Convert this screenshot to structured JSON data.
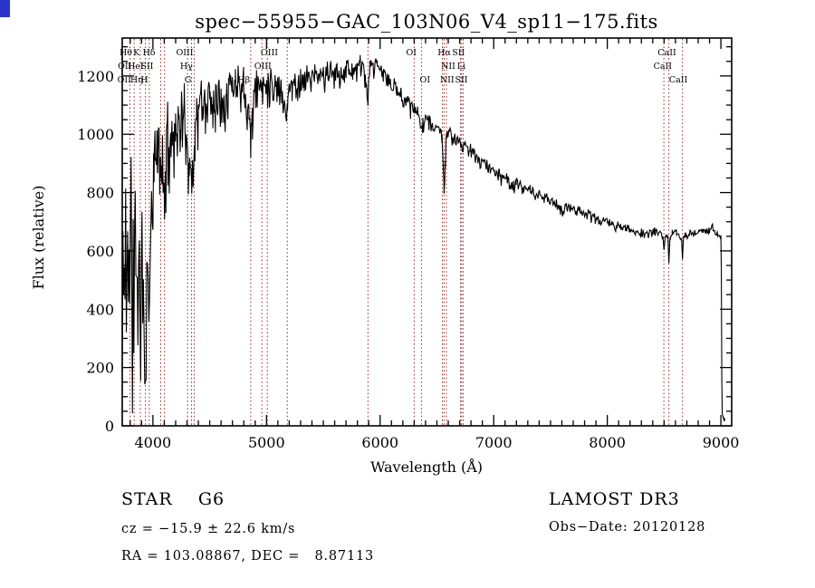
{
  "window": {
    "corner_artifact_color": "#2a35c8"
  },
  "chart_data": {
    "type": "line",
    "title": "spec−55955−GAC_103N06_V4_sp11−175.fits",
    "xlabel": "Wavelength (Å)",
    "ylabel": "Flux (relative)",
    "xlim": [
      3730,
      9095
    ],
    "ylim": [
      0,
      1330
    ],
    "xticks": [
      4000,
      5000,
      6000,
      7000,
      8000,
      9000
    ],
    "yticks": [
      0,
      200,
      400,
      600,
      800,
      1000,
      1200
    ],
    "x_minor_step": 100,
    "y_minor_step": 50,
    "grid": false,
    "legend": "none",
    "spectrum_color": "#000000",
    "line_marker_color": "#993333",
    "spectral_lines": [
      {
        "label": "Hθ",
        "wavelength": 3798,
        "row": 1,
        "label_at": 3762
      },
      {
        "label": "K",
        "wavelength": 3934,
        "row": 1,
        "label_at": 3855
      },
      {
        "label": "Hδ",
        "wavelength": 4102,
        "row": 1,
        "label_at": 3965
      },
      {
        "label": "OIII",
        "wavelength": 4363,
        "row": 1,
        "label_at": 4280
      },
      {
        "label": "OIII",
        "wavelength": 5007,
        "row": 1,
        "label_at": 5025
      },
      {
        "label": "OI",
        "wavelength": 6300,
        "row": 1,
        "label_at": 6275
      },
      {
        "label": "Hα",
        "wavelength": 6563,
        "row": 1,
        "label_at": 6565
      },
      {
        "label": "SII",
        "wavelength": 6717,
        "row": 1,
        "label_at": 6690
      },
      {
        "label": "CaII",
        "wavelength": 8542,
        "row": 1,
        "label_at": 8525
      },
      {
        "label": "OII",
        "wavelength": 3727,
        "row": 2,
        "label_at": 3752
      },
      {
        "label": "HeI",
        "wavelength": 3889,
        "row": 2,
        "label_at": 3848
      },
      {
        "label": "SII",
        "wavelength": 4069,
        "row": 2,
        "label_at": 3948
      },
      {
        "label": "Hγ",
        "wavelength": 4340,
        "row": 2,
        "label_at": 4295
      },
      {
        "label": "OIII",
        "wavelength": 4959,
        "row": 2,
        "label_at": 4968
      },
      {
        "label": "NII",
        "wavelength": 6584,
        "row": 2,
        "label_at": 6600
      },
      {
        "label": "Li",
        "wavelength": 6708,
        "row": 2,
        "label_at": 6715
      },
      {
        "label": "CaII",
        "wavelength": 8498,
        "row": 2,
        "label_at": 8488
      },
      {
        "label": "OII",
        "wavelength": 3729,
        "row": 3,
        "label_at": 3748
      },
      {
        "label": "Hη",
        "wavelength": 3835,
        "row": 3,
        "label_at": 3856
      },
      {
        "label": "H",
        "wavelength": 3968,
        "row": 3,
        "label_at": 3925
      },
      {
        "label": "G",
        "wavelength": 4305,
        "row": 3,
        "label_at": 4308
      },
      {
        "label": "Hβ",
        "wavelength": 4861,
        "row": 3,
        "label_at": 4800
      },
      {
        "label": "OI",
        "wavelength": 6364,
        "row": 3,
        "label_at": 6395
      },
      {
        "label": "NII",
        "wavelength": 6548,
        "row": 3,
        "label_at": 6590
      },
      {
        "label": "SII",
        "wavelength": 6731,
        "row": 3,
        "label_at": 6715
      },
      {
        "label": "CaII",
        "wavelength": 8662,
        "row": 3,
        "label_at": 8625
      },
      {
        "label": "",
        "wavelength": 5183,
        "row": 0
      },
      {
        "label": "",
        "wavelength": 5893,
        "row": 0
      }
    ],
    "spectrum_continuum": [
      [
        3730,
        180
      ],
      [
        3736,
        620
      ],
      [
        3742,
        360
      ],
      [
        3748,
        680
      ],
      [
        3754,
        420
      ],
      [
        3760,
        740
      ],
      [
        3766,
        300
      ],
      [
        3772,
        580
      ],
      [
        3778,
        850
      ],
      [
        3784,
        500
      ],
      [
        3790,
        700
      ],
      [
        3796,
        380
      ],
      [
        3802,
        640
      ],
      [
        3808,
        800
      ],
      [
        3814,
        480
      ],
      [
        3820,
        260
      ],
      [
        3826,
        560
      ],
      [
        3832,
        420
      ],
      [
        3838,
        640
      ],
      [
        3844,
        780
      ],
      [
        3850,
        520
      ],
      [
        3856,
        380
      ],
      [
        3862,
        680
      ],
      [
        3868,
        300
      ],
      [
        3874,
        550
      ],
      [
        3880,
        700
      ],
      [
        3886,
        420
      ],
      [
        3892,
        240
      ],
      [
        3898,
        520
      ],
      [
        3904,
        660
      ],
      [
        3910,
        400
      ],
      [
        3916,
        560
      ],
      [
        3922,
        300
      ],
      [
        3928,
        180
      ],
      [
        3934,
        120
      ],
      [
        3940,
        340
      ],
      [
        3946,
        520
      ],
      [
        3952,
        680
      ],
      [
        3958,
        460
      ],
      [
        3964,
        280
      ],
      [
        3970,
        380
      ],
      [
        3976,
        560
      ],
      [
        3982,
        720
      ],
      [
        3988,
        830
      ],
      [
        3994,
        760
      ],
      [
        4000,
        850
      ],
      [
        4010,
        920
      ],
      [
        4020,
        880
      ],
      [
        4030,
        950
      ],
      [
        4040,
        900
      ],
      [
        4050,
        980
      ],
      [
        4060,
        930
      ],
      [
        4070,
        880
      ],
      [
        4080,
        920
      ],
      [
        4090,
        850
      ],
      [
        4100,
        760
      ],
      [
        4110,
        880
      ],
      [
        4120,
        940
      ],
      [
        4130,
        990
      ],
      [
        4140,
        950
      ],
      [
        4150,
        1010
      ],
      [
        4160,
        970
      ],
      [
        4170,
        1020
      ],
      [
        4180,
        980
      ],
      [
        4190,
        1040
      ],
      [
        4200,
        1000
      ],
      [
        4215,
        1050
      ],
      [
        4230,
        1010
      ],
      [
        4245,
        1060
      ],
      [
        4260,
        1030
      ],
      [
        4275,
        1070
      ],
      [
        4290,
        1020
      ],
      [
        4300,
        960
      ],
      [
        4310,
        900
      ],
      [
        4320,
        940
      ],
      [
        4330,
        880
      ],
      [
        4340,
        820
      ],
      [
        4350,
        900
      ],
      [
        4360,
        960
      ],
      [
        4370,
        1010
      ],
      [
        4385,
        1050
      ],
      [
        4400,
        1080
      ],
      [
        4420,
        1110
      ],
      [
        4440,
        1090
      ],
      [
        4460,
        1120
      ],
      [
        4480,
        1100
      ],
      [
        4500,
        1130
      ],
      [
        4525,
        1110
      ],
      [
        4550,
        1140
      ],
      [
        4575,
        1120
      ],
      [
        4600,
        1150
      ],
      [
        4625,
        1130
      ],
      [
        4650,
        1160
      ],
      [
        4675,
        1180
      ],
      [
        4700,
        1160
      ],
      [
        4725,
        1190
      ],
      [
        4750,
        1170
      ],
      [
        4775,
        1190
      ],
      [
        4800,
        1170
      ],
      [
        4815,
        1150
      ],
      [
        4830,
        1120
      ],
      [
        4845,
        1060
      ],
      [
        4861,
        990
      ],
      [
        4875,
        1080
      ],
      [
        4890,
        1130
      ],
      [
        4910,
        1160
      ],
      [
        4930,
        1180
      ],
      [
        4950,
        1160
      ],
      [
        4970,
        1180
      ],
      [
        4990,
        1190
      ],
      [
        5010,
        1170
      ],
      [
        5030,
        1190
      ],
      [
        5050,
        1170
      ],
      [
        5075,
        1180
      ],
      [
        5100,
        1160
      ],
      [
        5125,
        1170
      ],
      [
        5150,
        1120
      ],
      [
        5170,
        1080
      ],
      [
        5185,
        1110
      ],
      [
        5200,
        1150
      ],
      [
        5225,
        1170
      ],
      [
        5250,
        1180
      ],
      [
        5275,
        1170
      ],
      [
        5300,
        1190
      ],
      [
        5325,
        1180
      ],
      [
        5350,
        1200
      ],
      [
        5375,
        1190
      ],
      [
        5400,
        1210
      ],
      [
        5425,
        1200
      ],
      [
        5450,
        1190
      ],
      [
        5475,
        1210
      ],
      [
        5500,
        1200
      ],
      [
        5525,
        1210
      ],
      [
        5550,
        1220
      ],
      [
        5575,
        1200
      ],
      [
        5600,
        1210
      ],
      [
        5625,
        1220
      ],
      [
        5650,
        1210
      ],
      [
        5675,
        1220
      ],
      [
        5700,
        1230
      ],
      [
        5725,
        1220
      ],
      [
        5750,
        1230
      ],
      [
        5775,
        1220
      ],
      [
        5800,
        1230
      ],
      [
        5825,
        1240
      ],
      [
        5850,
        1230
      ],
      [
        5870,
        1200
      ],
      [
        5885,
        1130
      ],
      [
        5893,
        1100
      ],
      [
        5900,
        1170
      ],
      [
        5910,
        1220
      ],
      [
        5925,
        1240
      ],
      [
        5950,
        1235
      ],
      [
        5975,
        1230
      ],
      [
        6000,
        1225
      ],
      [
        6030,
        1210
      ],
      [
        6060,
        1190
      ],
      [
        6090,
        1180
      ],
      [
        6120,
        1165
      ],
      [
        6150,
        1150
      ],
      [
        6180,
        1140
      ],
      [
        6210,
        1130
      ],
      [
        6240,
        1115
      ],
      [
        6270,
        1100
      ],
      [
        6300,
        1080
      ],
      [
        6330,
        1070
      ],
      [
        6355,
        1040
      ],
      [
        6364,
        1020
      ],
      [
        6375,
        1050
      ],
      [
        6400,
        1055
      ],
      [
        6430,
        1045
      ],
      [
        6460,
        1035
      ],
      [
        6490,
        1025
      ],
      [
        6520,
        1015
      ],
      [
        6545,
        1000
      ],
      [
        6555,
        900
      ],
      [
        6563,
        810
      ],
      [
        6572,
        910
      ],
      [
        6585,
        990
      ],
      [
        6610,
        1000
      ],
      [
        6640,
        990
      ],
      [
        6670,
        985
      ],
      [
        6700,
        975
      ],
      [
        6730,
        960
      ],
      [
        6760,
        955
      ],
      [
        6790,
        945
      ],
      [
        6820,
        935
      ],
      [
        6850,
        925
      ],
      [
        6880,
        915
      ],
      [
        6910,
        905
      ],
      [
        6940,
        895
      ],
      [
        6970,
        885
      ],
      [
        7000,
        875
      ],
      [
        7040,
        865
      ],
      [
        7080,
        855
      ],
      [
        7120,
        845
      ],
      [
        7160,
        830
      ],
      [
        7180,
        815
      ],
      [
        7200,
        835
      ],
      [
        7240,
        825
      ],
      [
        7280,
        815
      ],
      [
        7320,
        805
      ],
      [
        7360,
        800
      ],
      [
        7400,
        790
      ],
      [
        7440,
        785
      ],
      [
        7480,
        775
      ],
      [
        7520,
        770
      ],
      [
        7560,
        760
      ],
      [
        7590,
        740
      ],
      [
        7610,
        730
      ],
      [
        7640,
        755
      ],
      [
        7680,
        750
      ],
      [
        7720,
        745
      ],
      [
        7760,
        740
      ],
      [
        7800,
        730
      ],
      [
        7840,
        725
      ],
      [
        7880,
        715
      ],
      [
        7920,
        710
      ],
      [
        7960,
        705
      ],
      [
        8000,
        700
      ],
      [
        8040,
        692
      ],
      [
        8080,
        688
      ],
      [
        8120,
        682
      ],
      [
        8160,
        678
      ],
      [
        8200,
        672
      ],
      [
        8250,
        668
      ],
      [
        8300,
        662
      ],
      [
        8350,
        658
      ],
      [
        8400,
        668
      ],
      [
        8440,
        672
      ],
      [
        8470,
        660
      ],
      [
        8490,
        640
      ],
      [
        8498,
        600
      ],
      [
        8506,
        645
      ],
      [
        8520,
        660
      ],
      [
        8534,
        635
      ],
      [
        8542,
        570
      ],
      [
        8552,
        640
      ],
      [
        8570,
        660
      ],
      [
        8590,
        665
      ],
      [
        8610,
        660
      ],
      [
        8630,
        655
      ],
      [
        8654,
        635
      ],
      [
        8662,
        580
      ],
      [
        8672,
        645
      ],
      [
        8690,
        660
      ],
      [
        8720,
        660
      ],
      [
        8750,
        665
      ],
      [
        8780,
        660
      ],
      [
        8810,
        668
      ],
      [
        8840,
        672
      ],
      [
        8870,
        665
      ],
      [
        8900,
        672
      ],
      [
        8925,
        685
      ],
      [
        8945,
        670
      ],
      [
        8965,
        660
      ],
      [
        8985,
        650
      ],
      [
        9000,
        645
      ],
      [
        9004,
        520
      ],
      [
        9008,
        160
      ],
      [
        9012,
        40
      ],
      [
        9020,
        25
      ],
      [
        9035,
        20
      ]
    ],
    "noise_profile": [
      [
        3730,
        240
      ],
      [
        3990,
        150
      ],
      [
        4350,
        110
      ],
      [
        4600,
        100
      ],
      [
        5200,
        55
      ],
      [
        5950,
        38
      ],
      [
        6600,
        28
      ],
      [
        7200,
        24
      ],
      [
        8000,
        18
      ],
      [
        8460,
        14
      ],
      [
        9035,
        10
      ]
    ],
    "noise_seed": 11
  },
  "annotations": {
    "class_label": "STAR    G6",
    "cz": "cz = −15.9 ± 22.6 km/s",
    "radec": "RA = 103.08867, DEC =   8.87113",
    "survey": "LAMOST DR3",
    "obs_date": "Obs−Date: 20120128"
  }
}
